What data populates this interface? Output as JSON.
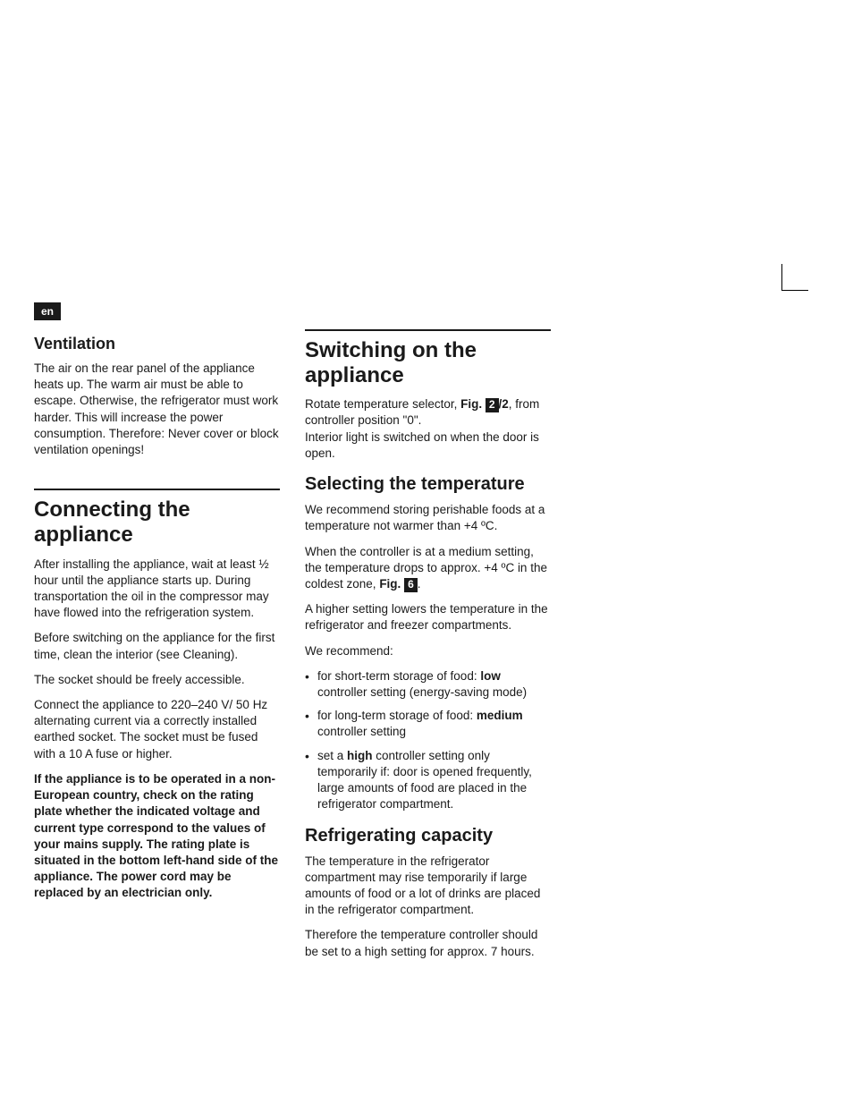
{
  "langBadge": "en",
  "left": {
    "ventilation": {
      "heading": "Ventilation",
      "body": "The air on the rear panel of the appliance heats up. The warm air must be able to escape. Otherwise, the refrigerator must work harder. This will increase the power consumption. Therefore: Never cover or block ventilation openings!"
    },
    "connecting": {
      "heading": "Connecting the appliance",
      "p1": "After installing the appliance, wait at least ½ hour until the appliance starts up. During transportation the oil in the compressor may have flowed into the refrigeration system.",
      "p2": "Before switching on the appliance for the first time, clean the interior (see Cleaning).",
      "p3": "The socket should be freely accessible.",
      "p4": "Connect the appliance to 220–240 V/ 50 Hz alternating current via a correctly installed earthed socket. The socket must be fused with a 10 A fuse or higher.",
      "p5": "If the appliance is to be operated in a non-European country, check on the rating plate whether the indicated voltage and current type correspond to the values of your mains supply. The rating plate is situated in the bottom left-hand side of the appliance. The power cord may be replaced by an electrician only."
    }
  },
  "right": {
    "switching": {
      "heading": "Switching on the appliance",
      "p1a": "Rotate temperature selector, ",
      "p1_fig_label": "Fig. ",
      "p1_fig_num": "2",
      "p1_fig_suffix": "/2",
      "p1b": ", from controller position \"0\".",
      "p2": "Interior light is switched on when the door is open."
    },
    "selecting": {
      "heading": "Selecting the temperature",
      "p1": "We recommend storing perishable foods at a temperature not warmer than +4 ºC.",
      "p2a": "When the controller is at a medium setting, the temperature drops to approx. +4 ºC in the coldest zone, ",
      "p2_fig_label": "Fig. ",
      "p2_fig_num": "6",
      "p2b": ".",
      "p3": "A higher setting lowers the temperature in the refrigerator and freezer compartments.",
      "p4": "We recommend:",
      "li1a": "for short-term storage of food: ",
      "li1b": "low",
      "li1c": " controller setting (energy-saving mode)",
      "li2a": "for long-term storage of food: ",
      "li2b": "medium",
      "li2c": " controller setting",
      "li3a": "set a ",
      "li3b": "high",
      "li3c": " controller setting only temporarily if: door is opened frequently, large amounts of food are placed in the refrigerator  compartment."
    },
    "refrig": {
      "heading": "Refrigerating capacity",
      "p1": "The temperature in the refrigerator compartment may rise temporarily if large amounts of food or a lot of drinks are placed in the refrigerator compartment.",
      "p2": "Therefore the temperature controller should be set to a high setting for approx. 7 hours."
    }
  }
}
